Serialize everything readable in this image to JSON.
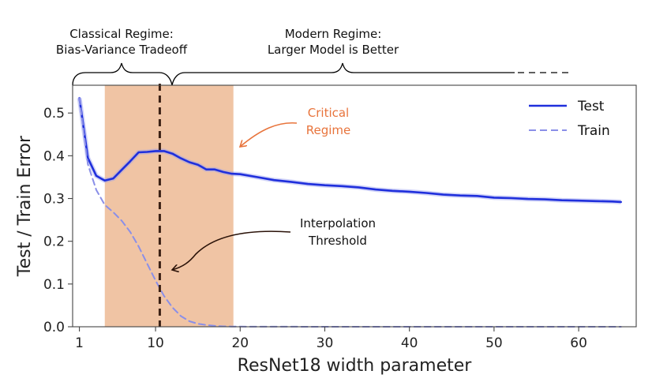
{
  "chart_data": {
    "type": "line",
    "xlabel": "ResNet18 width parameter",
    "ylabel": "Test / Train Error",
    "xlim": [
      0.2,
      66.8
    ],
    "ylim": [
      0.0,
      0.565
    ],
    "xticks": [
      1,
      10,
      20,
      30,
      40,
      50,
      60
    ],
    "yticks": [
      0.0,
      0.1,
      0.2,
      0.3,
      0.4,
      0.5
    ],
    "grid": false,
    "legend_position": "top-right",
    "series": [
      {
        "name": "Test",
        "color": "#1f2fdc",
        "style": "solid",
        "x": [
          1,
          2,
          3,
          4,
          5,
          6,
          7,
          8,
          9,
          10,
          11,
          12,
          13,
          14,
          15,
          16,
          17,
          18,
          19,
          20,
          22,
          24,
          26,
          28,
          30,
          32,
          34,
          36,
          38,
          40,
          42,
          44,
          46,
          48,
          50,
          52,
          54,
          56,
          58,
          60,
          62,
          64,
          65
        ],
        "y": [
          0.535,
          0.395,
          0.353,
          0.342,
          0.347,
          0.367,
          0.387,
          0.408,
          0.409,
          0.411,
          0.411,
          0.405,
          0.394,
          0.385,
          0.379,
          0.368,
          0.368,
          0.362,
          0.358,
          0.357,
          0.35,
          0.343,
          0.339,
          0.334,
          0.331,
          0.329,
          0.326,
          0.321,
          0.318,
          0.316,
          0.313,
          0.309,
          0.307,
          0.306,
          0.302,
          0.301,
          0.299,
          0.298,
          0.296,
          0.295,
          0.294,
          0.293,
          0.292
        ]
      },
      {
        "name": "Train",
        "color": "#8a8fe8",
        "style": "dashed",
        "x": [
          1,
          2,
          3,
          4,
          5,
          6,
          7,
          8,
          9,
          10,
          11,
          12,
          13,
          14,
          15,
          16,
          17,
          18,
          19,
          20,
          25,
          30,
          40,
          50,
          60,
          65
        ],
        "y": [
          0.535,
          0.38,
          0.32,
          0.285,
          0.268,
          0.248,
          0.222,
          0.188,
          0.148,
          0.108,
          0.072,
          0.045,
          0.025,
          0.013,
          0.007,
          0.004,
          0.002,
          0.001,
          0.0005,
          0.0003,
          0.0002,
          0.0,
          0.0,
          0.0,
          0.0,
          0.0
        ]
      }
    ],
    "shaded_region": {
      "x_start": 4,
      "x_end": 19.2,
      "color": "#efbf9c"
    },
    "threshold_line": {
      "x": 10.5,
      "color": "#3b2115"
    },
    "annotations": [
      {
        "text": [
          "Critical",
          "Regime"
        ],
        "color": "#e8743c"
      },
      {
        "text": [
          "Interpolation",
          "Threshold"
        ],
        "color": "#111111"
      }
    ],
    "regimes": [
      {
        "text": [
          "Classical Regime:",
          "Bias-Variance Tradeoff"
        ]
      },
      {
        "text": [
          "Modern Regime:",
          "Larger Model is Better"
        ]
      }
    ]
  }
}
